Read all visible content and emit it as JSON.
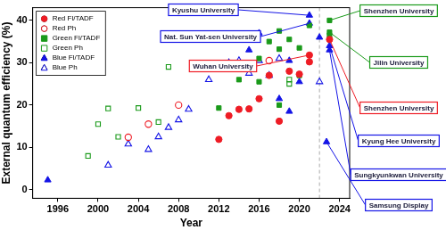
{
  "chart_data": {
    "type": "scatter",
    "x_label": "Year",
    "y_label": "External quantum efficiency (%)",
    "xlim": [
      1993.5,
      2025
    ],
    "xticks": [
      1996,
      2000,
      2004,
      2008,
      2012,
      2016,
      2020,
      2024
    ],
    "ylim": [
      -2,
      43
    ],
    "yticks": [
      0,
      10,
      20,
      30,
      40
    ],
    "grid": false,
    "legend": "top-left",
    "reference_line_x": 2022,
    "series": [
      {
        "name": "Red Fl/TADF",
        "color": "#ee1c25",
        "marker": "circle",
        "x": [
          2012,
          2013,
          2014,
          2015,
          2016,
          2017,
          2018,
          2019,
          2020,
          2021,
          2021,
          2023
        ],
        "values": [
          11.9,
          17.5,
          19,
          19.1,
          21.5,
          27,
          16.2,
          28,
          27.3,
          31.8,
          30.2,
          35.5
        ]
      },
      {
        "name": "Red Ph",
        "color": "#ee1c25",
        "marker": "open-circle",
        "x": [
          2003,
          2005,
          2008,
          2017
        ],
        "values": [
          12.4,
          15.5,
          20,
          30.5
        ]
      },
      {
        "name": "Green Fl/TADF",
        "color": "#1a9a1a",
        "marker": "square",
        "x": [
          2012,
          2014,
          2015,
          2016,
          2016,
          2017,
          2018,
          2018,
          2018,
          2019,
          2020,
          2020,
          2021,
          2023,
          2023,
          2023
        ],
        "values": [
          19.3,
          26,
          29,
          25.5,
          31,
          35,
          33.2,
          20,
          37.5,
          35.5,
          33.5,
          27,
          38.8,
          40,
          37.2,
          36.5
        ]
      },
      {
        "name": "Green Ph",
        "color": "#1a9a1a",
        "marker": "open-square",
        "x": [
          1999,
          2000,
          2001,
          2002,
          2004,
          2006,
          2007,
          2011,
          2013,
          2014,
          2019,
          2019
        ],
        "values": [
          8,
          15.5,
          19.2,
          12.5,
          19.3,
          16,
          29,
          29,
          29,
          29.5,
          25,
          26
        ]
      },
      {
        "name": "Blue Fl/TADF",
        "color": "#1414e6",
        "marker": "triangle",
        "x": [
          1995,
          2015,
          2016,
          2018,
          2019,
          2019,
          2020,
          2021,
          2021,
          2022,
          2022.7,
          2023,
          2023
        ],
        "values": [
          2.3,
          33,
          37,
          21.5,
          18.5,
          30.5,
          25.5,
          41.2,
          39.3,
          36,
          11.3,
          34,
          33
        ]
      },
      {
        "name": "Blue Ph",
        "color": "#1414e6",
        "marker": "open-triangle",
        "x": [
          2001,
          2003,
          2005,
          2006,
          2007,
          2008,
          2009,
          2011,
          2012,
          2013,
          2014,
          2015,
          2016,
          2017,
          2018,
          2022
        ],
        "values": [
          5.8,
          10.8,
          9.5,
          12.5,
          14.7,
          16.5,
          19,
          26,
          29,
          30,
          30.5,
          27.5,
          30.5,
          27,
          31,
          25.5
        ]
      }
    ],
    "annotations": [
      {
        "text": "Kyushu University",
        "color": "#1414e6",
        "x": 2021,
        "y": 41.2
      },
      {
        "text": "Nat. Sun Yat-sen University",
        "color": "#1414e6",
        "x": 2021,
        "y": 39.3
      },
      {
        "text": "Wuhan University",
        "color": "#ee1c25",
        "x": 2021,
        "y": 31.8
      },
      {
        "text": "Shenzhen University",
        "color": "#1a9a1a",
        "x": 2023,
        "y": 40
      },
      {
        "text": "Jilin University",
        "color": "#1a9a1a",
        "x": 2023,
        "y": 37.2
      },
      {
        "text": "Shenzhen University",
        "color": "#ee1c25",
        "x": 2023,
        "y": 35.5
      },
      {
        "text": "Kyung Hee University",
        "color": "#1414e6",
        "x": 2023,
        "y": 34
      },
      {
        "text": "Sungkyunkwan University",
        "color": "#1414e6",
        "x": 2023,
        "y": 33
      },
      {
        "text": "Samsung Display",
        "color": "#1414e6",
        "x": 2022.7,
        "y": 11.3
      }
    ]
  }
}
